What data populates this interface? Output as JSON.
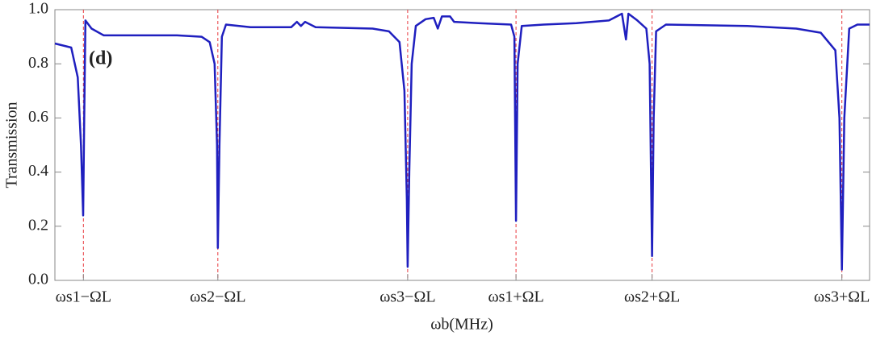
{
  "chart_data": {
    "type": "line",
    "annotation": "(d)",
    "xlabel": "ωb(MHz)",
    "ylabel": "Transmission",
    "xlim": [
      0,
      100
    ],
    "ylim": [
      0,
      1
    ],
    "xticks": [
      {
        "value": 3.5,
        "label": "ωs1−ΩL"
      },
      {
        "value": 20,
        "label": "ωs2−ΩL"
      },
      {
        "value": 43.3,
        "label": "ωs3−ΩL"
      },
      {
        "value": 56.6,
        "label": "ωs1+ΩL"
      },
      {
        "value": 73.3,
        "label": "ωs2+ΩL"
      },
      {
        "value": 96.6,
        "label": "ωs3+ΩL"
      }
    ],
    "yticks": [
      {
        "value": 0,
        "label": "0.0"
      },
      0.2,
      0.4,
      0.6,
      0.8,
      {
        "value": 1,
        "label": "1.0"
      }
    ],
    "marker_line_color": "#e8383d",
    "series": [
      {
        "color": "#1f1fbf",
        "x": [
          0,
          2.0,
          2.8,
          3.2,
          3.47,
          3.6,
          3.75,
          4.5,
          6,
          15,
          18,
          19,
          19.6,
          19.9,
          20.0,
          20.2,
          20.5,
          21,
          24,
          29,
          29.7,
          30.2,
          30.7,
          32,
          39,
          41,
          42.3,
          42.9,
          43.2,
          43.3,
          43.5,
          43.8,
          44.3,
          45.5,
          46.5,
          47,
          47.5,
          48.5,
          49,
          52,
          56,
          56.4,
          56.6,
          56.8,
          57.3,
          60,
          64,
          68,
          69.6,
          70.1,
          70.4,
          71.5,
          72.6,
          73.0,
          73.3,
          73.5,
          73.8,
          75,
          85,
          91,
          94,
          95.8,
          96.3,
          96.6,
          96.9,
          97.5,
          98.5,
          100
        ],
        "values": [
          0.875,
          0.86,
          0.75,
          0.5,
          0.24,
          0.6,
          0.96,
          0.93,
          0.905,
          0.905,
          0.9,
          0.88,
          0.8,
          0.5,
          0.12,
          0.5,
          0.9,
          0.945,
          0.935,
          0.935,
          0.955,
          0.94,
          0.955,
          0.935,
          0.93,
          0.92,
          0.88,
          0.7,
          0.3,
          0.05,
          0.4,
          0.8,
          0.94,
          0.965,
          0.97,
          0.93,
          0.975,
          0.975,
          0.955,
          0.95,
          0.945,
          0.9,
          0.22,
          0.8,
          0.94,
          0.945,
          0.95,
          0.96,
          0.985,
          0.89,
          0.985,
          0.96,
          0.93,
          0.8,
          0.09,
          0.6,
          0.92,
          0.945,
          0.94,
          0.93,
          0.915,
          0.85,
          0.6,
          0.04,
          0.6,
          0.93,
          0.945,
          0.945
        ]
      }
    ]
  }
}
